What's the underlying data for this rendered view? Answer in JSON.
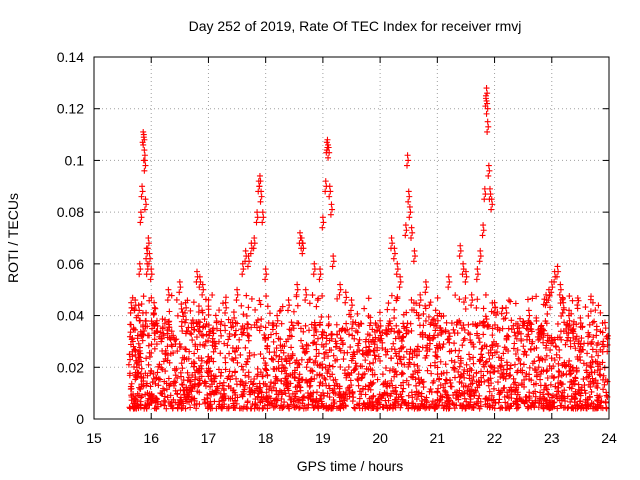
{
  "chart_data": {
    "type": "scatter",
    "title": "Day 252 of 2019, Rate Of TEC Index for receiver rmvj",
    "xlabel": "GPS time / hours",
    "ylabel": "ROTI / TECUs",
    "xlim": [
      15,
      24
    ],
    "ylim": [
      0,
      0.14
    ],
    "x_ticks": [
      "15",
      "16",
      "17",
      "18",
      "19",
      "20",
      "21",
      "22",
      "23",
      "24"
    ],
    "y_ticks": [
      "0",
      "0.02",
      "0.04",
      "0.06",
      "0.08",
      "0.1",
      "0.12",
      "0.14"
    ],
    "grid": true,
    "marker": "+",
    "color": "#ff0000",
    "series": [
      {
        "name": "ROTI",
        "description_points": "dense band of values mostly between 0.003 and 0.045 from ~15.6 h to 24 h; notable peaks listed below",
        "points": [
          [
            15.62,
            0.025
          ],
          [
            15.65,
            0.045
          ],
          [
            15.68,
            0.03
          ],
          [
            15.7,
            0.008
          ],
          [
            15.72,
            0.046
          ],
          [
            15.75,
            0.02
          ],
          [
            15.78,
            0.044
          ],
          [
            15.8,
            0.06
          ],
          [
            15.82,
            0.08
          ],
          [
            15.84,
            0.09
          ],
          [
            15.86,
            0.111
          ],
          [
            15.87,
            0.11
          ],
          [
            15.88,
            0.104
          ],
          [
            15.89,
            0.1
          ],
          [
            15.9,
            0.085
          ],
          [
            15.92,
            0.066
          ],
          [
            15.93,
            0.06
          ],
          [
            15.95,
            0.07
          ],
          [
            15.97,
            0.064
          ],
          [
            16.0,
            0.058
          ],
          [
            16.05,
            0.045
          ],
          [
            16.1,
            0.038
          ],
          [
            16.2,
            0.035
          ],
          [
            16.3,
            0.05
          ],
          [
            16.5,
            0.053
          ],
          [
            16.6,
            0.045
          ],
          [
            16.8,
            0.057
          ],
          [
            16.85,
            0.055
          ],
          [
            16.9,
            0.052
          ],
          [
            17.1,
            0.03
          ],
          [
            17.3,
            0.045
          ],
          [
            17.5,
            0.05
          ],
          [
            17.6,
            0.06
          ],
          [
            17.65,
            0.065
          ],
          [
            17.7,
            0.063
          ],
          [
            17.75,
            0.068
          ],
          [
            17.8,
            0.07
          ],
          [
            17.85,
            0.08
          ],
          [
            17.88,
            0.092
          ],
          [
            17.9,
            0.094
          ],
          [
            17.92,
            0.088
          ],
          [
            17.95,
            0.08
          ],
          [
            18.0,
            0.058
          ],
          [
            18.2,
            0.04
          ],
          [
            18.4,
            0.046
          ],
          [
            18.55,
            0.052
          ],
          [
            18.6,
            0.072
          ],
          [
            18.63,
            0.07
          ],
          [
            18.65,
            0.068
          ],
          [
            18.7,
            0.05
          ],
          [
            18.85,
            0.06
          ],
          [
            18.95,
            0.058
          ],
          [
            19.0,
            0.078
          ],
          [
            19.05,
            0.092
          ],
          [
            19.07,
            0.107
          ],
          [
            19.08,
            0.108
          ],
          [
            19.1,
            0.105
          ],
          [
            19.12,
            0.09
          ],
          [
            19.15,
            0.083
          ],
          [
            19.18,
            0.063
          ],
          [
            19.3,
            0.052
          ],
          [
            19.4,
            0.049
          ],
          [
            19.5,
            0.046
          ],
          [
            19.8,
            0.03
          ],
          [
            20.0,
            0.038
          ],
          [
            20.2,
            0.07
          ],
          [
            20.25,
            0.066
          ],
          [
            20.3,
            0.06
          ],
          [
            20.35,
            0.055
          ],
          [
            20.45,
            0.075
          ],
          [
            20.48,
            0.102
          ],
          [
            20.5,
            0.088
          ],
          [
            20.52,
            0.082
          ],
          [
            20.55,
            0.074
          ],
          [
            20.6,
            0.065
          ],
          [
            20.7,
            0.048
          ],
          [
            20.8,
            0.053
          ],
          [
            21.0,
            0.04
          ],
          [
            21.2,
            0.055
          ],
          [
            21.4,
            0.067
          ],
          [
            21.45,
            0.06
          ],
          [
            21.5,
            0.057
          ],
          [
            21.6,
            0.048
          ],
          [
            21.7,
            0.058
          ],
          [
            21.75,
            0.065
          ],
          [
            21.8,
            0.075
          ],
          [
            21.83,
            0.089
          ],
          [
            21.85,
            0.125
          ],
          [
            21.86,
            0.128
          ],
          [
            21.87,
            0.122
          ],
          [
            21.88,
            0.115
          ],
          [
            21.9,
            0.098
          ],
          [
            21.92,
            0.089
          ],
          [
            21.95,
            0.085
          ],
          [
            22.0,
            0.045
          ],
          [
            22.2,
            0.043
          ],
          [
            22.4,
            0.035
          ],
          [
            22.6,
            0.042
          ],
          [
            22.8,
            0.035
          ],
          [
            22.9,
            0.048
          ],
          [
            22.95,
            0.05
          ],
          [
            23.0,
            0.053
          ],
          [
            23.05,
            0.057
          ],
          [
            23.1,
            0.059
          ],
          [
            23.15,
            0.052
          ],
          [
            23.2,
            0.045
          ],
          [
            23.3,
            0.04
          ],
          [
            23.5,
            0.028
          ],
          [
            23.7,
            0.024
          ],
          [
            23.9,
            0.03
          ]
        ]
      }
    ]
  }
}
